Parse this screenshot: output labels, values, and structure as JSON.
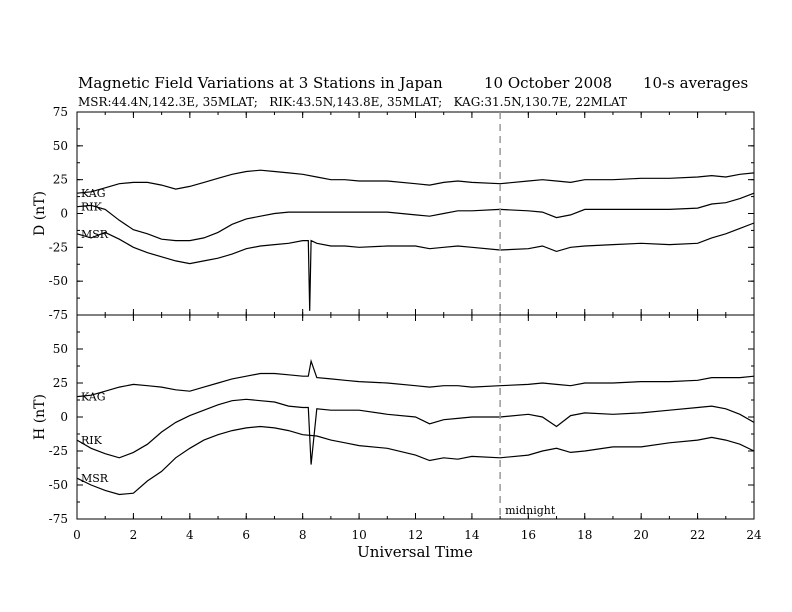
{
  "chart_data": {
    "type": "line",
    "title": "Magnetic Field Variations at 3 Stations in Japan",
    "date": "10 October 2008",
    "averaging": "10-s averages",
    "subtitle": "MSR:44.4N,142.3E, 35MLAT;   RIK:43.5N,143.8E, 35MLAT;   KAG:31.5N,130.7E, 22MLAT",
    "xlabel": "Universal Time",
    "xlim": [
      0,
      24
    ],
    "x_ticks": [
      "0",
      "2",
      "4",
      "6",
      "8",
      "10",
      "12",
      "14",
      "16",
      "18",
      "20",
      "22",
      "24"
    ],
    "y_ticks": [
      "75",
      "50",
      "25",
      "0",
      "-25",
      "-50",
      "-75"
    ],
    "grid": false,
    "annotation": {
      "text": "midnight",
      "x": 15
    },
    "panels": [
      {
        "ylabel": "D (nT)",
        "ylim": [
          -75,
          75
        ],
        "series": [
          {
            "name": "KAG",
            "x": [
              0,
              0.5,
              1,
              1.5,
              2,
              2.5,
              3,
              3.5,
              4,
              4.5,
              5,
              5.5,
              6,
              6.5,
              7,
              7.5,
              8,
              8.5,
              9,
              9.5,
              10,
              11,
              12,
              12.5,
              13,
              13.5,
              14,
              15,
              16,
              16.5,
              17,
              17.5,
              18,
              19,
              20,
              21,
              22,
              22.5,
              23,
              23.5,
              24
            ],
            "y": [
              15,
              16,
              19,
              22,
              23,
              23,
              21,
              18,
              20,
              23,
              26,
              29,
              31,
              32,
              31,
              30,
              29,
              27,
              25,
              25,
              24,
              24,
              22,
              21,
              23,
              24,
              23,
              22,
              24,
              25,
              24,
              23,
              25,
              25,
              26,
              26,
              27,
              28,
              27,
              29,
              30
            ]
          },
          {
            "name": "RIK",
            "x": [
              0,
              0.5,
              1,
              1.5,
              2,
              2.5,
              3,
              3.5,
              4,
              4.5,
              5,
              5.5,
              6,
              6.5,
              7,
              7.5,
              8,
              8.5,
              9,
              9.5,
              10,
              11,
              12,
              12.5,
              13,
              13.5,
              14,
              15,
              16,
              16.5,
              17,
              17.5,
              18,
              19,
              20,
              21,
              22,
              22.5,
              23,
              23.5,
              24
            ],
            "y": [
              5,
              6,
              3,
              -5,
              -12,
              -15,
              -19,
              -20,
              -20,
              -18,
              -14,
              -8,
              -4,
              -2,
              0,
              1,
              1,
              1,
              1,
              1,
              1,
              1,
              -1,
              -2,
              0,
              2,
              2,
              3,
              2,
              1,
              -3,
              -1,
              3,
              3,
              3,
              3,
              4,
              7,
              8,
              11,
              15
            ]
          },
          {
            "name": "MSR",
            "x": [
              0,
              0.5,
              1,
              1.5,
              2,
              2.5,
              3,
              3.5,
              4,
              4.5,
              5,
              5.5,
              6,
              6.5,
              7,
              7.5,
              8,
              8.2,
              8.25,
              8.3,
              8.5,
              9,
              9.5,
              10,
              11,
              12,
              12.5,
              13,
              13.5,
              14,
              15,
              16,
              16.5,
              17,
              17.5,
              18,
              19,
              20,
              21,
              22,
              22.5,
              23,
              23.5,
              24
            ],
            "y": [
              -15,
              -18,
              -14,
              -19,
              -25,
              -29,
              -32,
              -35,
              -37,
              -35,
              -33,
              -30,
              -26,
              -24,
              -23,
              -22,
              -20,
              -20,
              -72,
              -20,
              -22,
              -24,
              -24,
              -25,
              -24,
              -24,
              -26,
              -25,
              -24,
              -25,
              -27,
              -26,
              -24,
              -28,
              -25,
              -24,
              -23,
              -22,
              -23,
              -22,
              -18,
              -15,
              -11,
              -7
            ]
          }
        ]
      },
      {
        "ylabel": "H (nT)",
        "ylim": [
          -75,
          75
        ],
        "series": [
          {
            "name": "KAG",
            "x": [
              0,
              0.5,
              1,
              1.5,
              2,
              2.5,
              3,
              3.5,
              4,
              4.5,
              5,
              5.5,
              6,
              6.5,
              7,
              7.5,
              8,
              8.2,
              8.3,
              8.5,
              9,
              9.5,
              10,
              11,
              12,
              12.5,
              13,
              13.5,
              14,
              15,
              16,
              16.5,
              17,
              17.5,
              18,
              19,
              20,
              21,
              22,
              22.5,
              23,
              23.5,
              24
            ],
            "y": [
              15,
              16,
              19,
              22,
              24,
              23,
              22,
              20,
              19,
              22,
              25,
              28,
              30,
              32,
              32,
              31,
              30,
              30,
              41,
              29,
              28,
              27,
              26,
              25,
              23,
              22,
              23,
              23,
              22,
              23,
              24,
              25,
              24,
              23,
              25,
              25,
              26,
              26,
              27,
              29,
              29,
              29,
              30
            ]
          },
          {
            "name": "RIK",
            "x": [
              0,
              0.5,
              1,
              1.5,
              2,
              2.5,
              3,
              3.5,
              4,
              4.5,
              5,
              5.5,
              6,
              6.5,
              7,
              7.5,
              8,
              8.2,
              8.3,
              8.5,
              9,
              9.5,
              10,
              11,
              12,
              12.5,
              13,
              13.5,
              14,
              15,
              16,
              16.5,
              17,
              17.5,
              18,
              19,
              20,
              21,
              22,
              22.5,
              23,
              23.5,
              24
            ],
            "y": [
              -17,
              -23,
              -27,
              -30,
              -26,
              -20,
              -11,
              -4,
              1,
              5,
              9,
              12,
              13,
              12,
              11,
              8,
              7,
              7,
              -35,
              6,
              5,
              5,
              5,
              2,
              0,
              -5,
              -2,
              -1,
              0,
              0,
              2,
              0,
              -7,
              1,
              3,
              2,
              3,
              5,
              7,
              8,
              6,
              2,
              -4
            ]
          },
          {
            "name": "MSR",
            "x": [
              0,
              0.5,
              1,
              1.5,
              2,
              2.5,
              3,
              3.5,
              4,
              4.5,
              5,
              5.5,
              6,
              6.5,
              7,
              7.5,
              8,
              8.5,
              9,
              9.5,
              10,
              11,
              12,
              12.5,
              13,
              13.5,
              14,
              15,
              16,
              16.5,
              17,
              17.5,
              18,
              19,
              20,
              21,
              22,
              22.5,
              23,
              23.5,
              24
            ],
            "y": [
              -45,
              -50,
              -54,
              -57,
              -56,
              -47,
              -40,
              -30,
              -23,
              -17,
              -13,
              -10,
              -8,
              -7,
              -8,
              -10,
              -13,
              -14,
              -17,
              -19,
              -21,
              -23,
              -28,
              -32,
              -30,
              -31,
              -29,
              -30,
              -28,
              -25,
              -23,
              -26,
              -25,
              -22,
              -22,
              -19,
              -17,
              -15,
              -17,
              -20,
              -25
            ]
          }
        ]
      }
    ]
  }
}
